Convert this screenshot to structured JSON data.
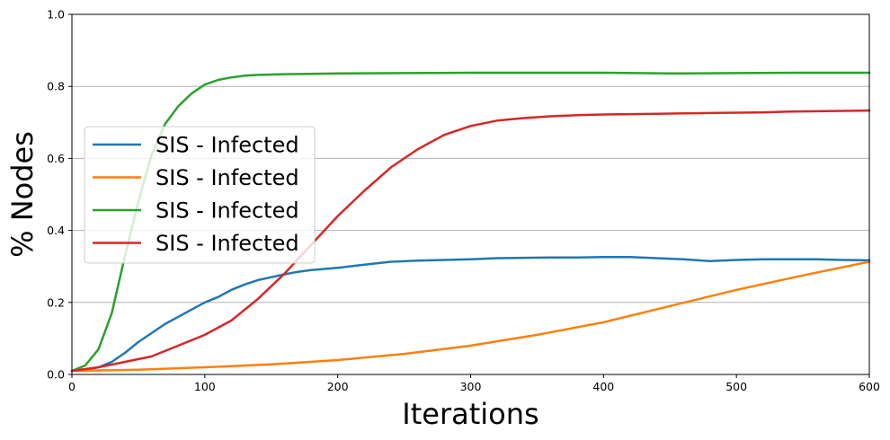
{
  "chart_data": {
    "type": "line",
    "xlabel": "Iterations",
    "ylabel": "% Nodes",
    "xlim": [
      0,
      600
    ],
    "ylim": [
      0,
      1.0
    ],
    "x_ticks": [
      "0",
      "100",
      "200",
      "300",
      "400",
      "500",
      "600"
    ],
    "y_ticks": [
      "0.0",
      "0.2",
      "0.4",
      "0.6",
      "0.8",
      "1.0"
    ],
    "grid": "horizontal",
    "legend_position": "center-left",
    "series": [
      {
        "name": "SIS - Infected",
        "color": "#1f77b4",
        "x": [
          0,
          10,
          20,
          30,
          40,
          50,
          60,
          70,
          80,
          90,
          100,
          110,
          120,
          130,
          140,
          150,
          160,
          170,
          180,
          190,
          200,
          220,
          240,
          260,
          280,
          300,
          320,
          340,
          360,
          380,
          400,
          420,
          440,
          460,
          480,
          500,
          520,
          540,
          560,
          580,
          600
        ],
        "y": [
          0.01,
          0.013,
          0.02,
          0.035,
          0.06,
          0.09,
          0.115,
          0.14,
          0.16,
          0.18,
          0.2,
          0.215,
          0.235,
          0.25,
          0.262,
          0.27,
          0.278,
          0.285,
          0.29,
          0.293,
          0.296,
          0.305,
          0.313,
          0.316,
          0.318,
          0.32,
          0.323,
          0.324,
          0.325,
          0.325,
          0.326,
          0.326,
          0.323,
          0.32,
          0.315,
          0.318,
          0.32,
          0.32,
          0.32,
          0.318,
          0.317
        ]
      },
      {
        "name": "SIS - Infected",
        "color": "#ff7f0e",
        "x": [
          0,
          50,
          100,
          150,
          200,
          250,
          300,
          350,
          400,
          450,
          500,
          550,
          600
        ],
        "y": [
          0.01,
          0.013,
          0.02,
          0.028,
          0.04,
          0.057,
          0.08,
          0.11,
          0.145,
          0.19,
          0.235,
          0.275,
          0.313
        ]
      },
      {
        "name": "SIS - Infected",
        "color": "#2ca02c",
        "x": [
          0,
          10,
          20,
          30,
          40,
          50,
          60,
          70,
          80,
          90,
          100,
          110,
          120,
          130,
          140,
          150,
          160,
          180,
          200,
          250,
          300,
          350,
          400,
          450,
          500,
          550,
          600
        ],
        "y": [
          0.01,
          0.025,
          0.07,
          0.17,
          0.33,
          0.48,
          0.61,
          0.695,
          0.745,
          0.78,
          0.805,
          0.818,
          0.825,
          0.83,
          0.832,
          0.833,
          0.834,
          0.835,
          0.836,
          0.837,
          0.838,
          0.838,
          0.838,
          0.836,
          0.837,
          0.838,
          0.838
        ]
      },
      {
        "name": "SIS - Infected",
        "color": "#d62728",
        "x": [
          0,
          20,
          40,
          60,
          80,
          100,
          120,
          140,
          160,
          180,
          200,
          220,
          240,
          260,
          280,
          300,
          320,
          340,
          360,
          380,
          400,
          420,
          440,
          460,
          480,
          500,
          520,
          540,
          560,
          580,
          600
        ],
        "y": [
          0.01,
          0.02,
          0.035,
          0.05,
          0.08,
          0.11,
          0.15,
          0.21,
          0.28,
          0.36,
          0.44,
          0.51,
          0.575,
          0.625,
          0.665,
          0.69,
          0.705,
          0.712,
          0.717,
          0.72,
          0.722,
          0.723,
          0.724,
          0.725,
          0.726,
          0.727,
          0.728,
          0.73,
          0.731,
          0.732,
          0.733
        ]
      }
    ]
  }
}
